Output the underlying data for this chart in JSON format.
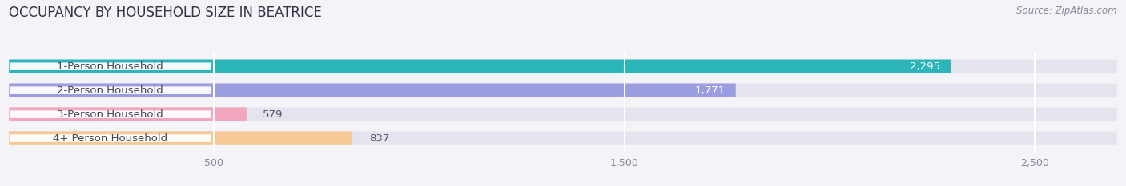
{
  "title": "OCCUPANCY BY HOUSEHOLD SIZE IN BEATRICE",
  "source": "Source: ZipAtlas.com",
  "categories": [
    "1-Person Household",
    "2-Person Household",
    "3-Person Household",
    "4+ Person Household"
  ],
  "values": [
    2295,
    1771,
    579,
    837
  ],
  "bar_colors": [
    "#2bb5b8",
    "#9b9de0",
    "#f2a7be",
    "#f5c896"
  ],
  "xlim": [
    0,
    2700
  ],
  "xticks": [
    500,
    1500,
    2500
  ],
  "bar_height": 0.58,
  "background_color": "#f4f4f8",
  "bar_bg_color": "#e4e4ee",
  "value_color": "#ffffff",
  "dark_value_color": "#555566",
  "title_fontsize": 12,
  "source_fontsize": 8.5,
  "tick_fontsize": 9,
  "label_fontsize": 9.5,
  "value_fontsize": 9.5,
  "label_bg_color": "#ffffff",
  "label_text_color": "#444455",
  "grid_color": "#ffffff",
  "grid_lw": 1.5
}
